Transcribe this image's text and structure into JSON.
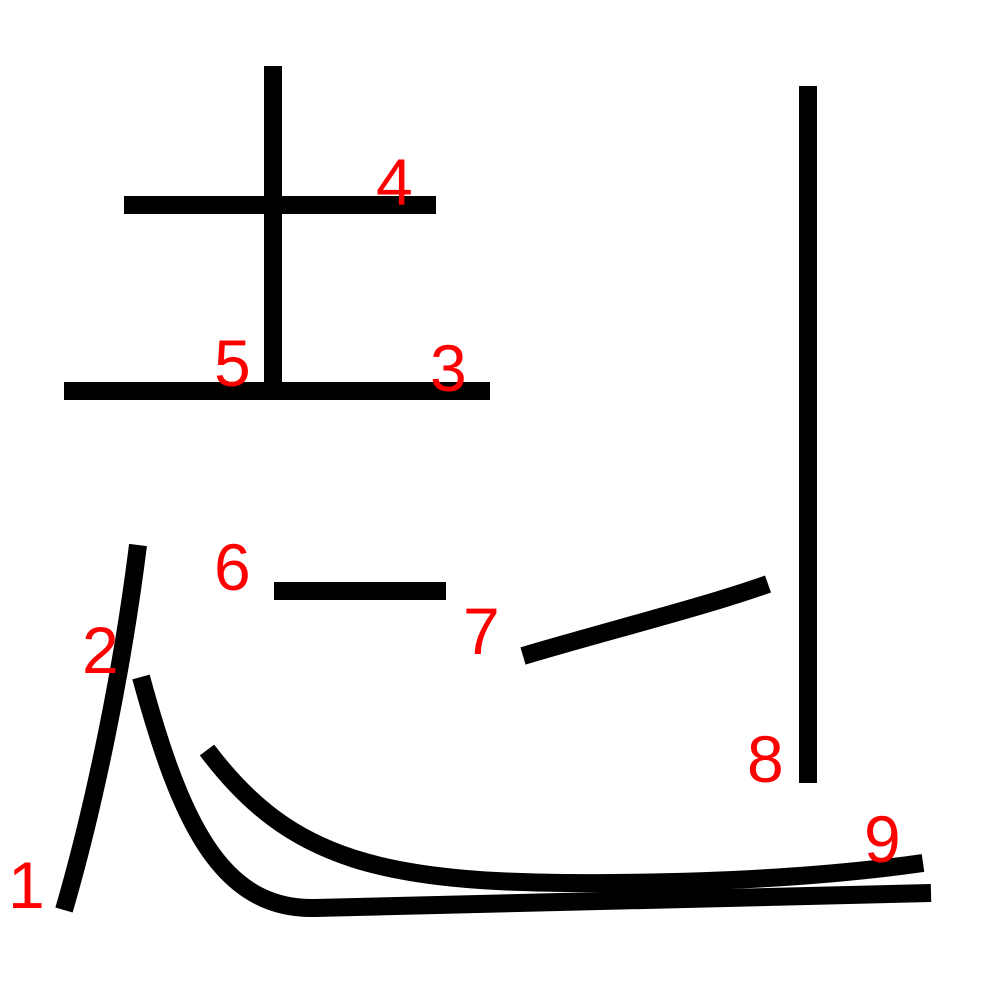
{
  "diagram": {
    "colors": {
      "stroke": "#000000",
      "label": "#ff0000",
      "background": "#ffffff"
    },
    "labels": [
      "1",
      "2",
      "3",
      "4",
      "5",
      "6",
      "7",
      "8",
      "9"
    ]
  }
}
